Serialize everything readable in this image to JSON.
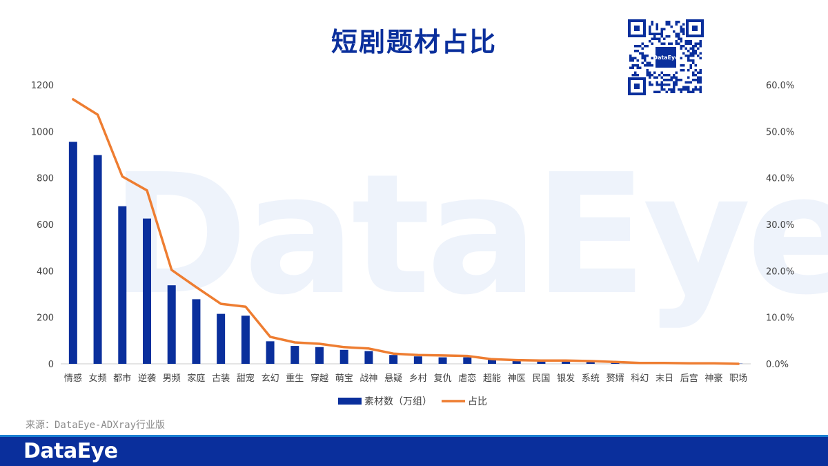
{
  "page": {
    "title": "短剧题材占比",
    "watermark": "DataEye",
    "source": "来源：DataEye-ADXray行业版",
    "footer_brand": "DataEye",
    "qr_label": "DataEye"
  },
  "chart_data": {
    "type": "bar",
    "title": "短剧题材占比",
    "categories": [
      "情感",
      "女频",
      "都市",
      "逆袭",
      "男频",
      "家庭",
      "古装",
      "甜宠",
      "玄幻",
      "重生",
      "穿越",
      "萌宝",
      "战神",
      "悬疑",
      "乡村",
      "复仇",
      "虐恋",
      "超能",
      "神医",
      "民国",
      "银发",
      "系统",
      "赘婿",
      "科幻",
      "末日",
      "后宫",
      "神豪",
      "职场"
    ],
    "series": [
      {
        "name": "素材数（万组）",
        "type": "bar",
        "axis": "left",
        "color": "#0a2f9c",
        "values": [
          955,
          898,
          678,
          625,
          338,
          278,
          215,
          207,
          97,
          77,
          72,
          60,
          55,
          38,
          32,
          28,
          28,
          17,
          13,
          12,
          12,
          10,
          7,
          5,
          4,
          3,
          2,
          1
        ]
      },
      {
        "name": "占比",
        "type": "line",
        "axis": "right",
        "color": "#ee7d31",
        "values": [
          56.9,
          53.6,
          40.3,
          37.3,
          20.2,
          16.5,
          12.9,
          12.3,
          5.8,
          4.6,
          4.3,
          3.6,
          3.3,
          2.2,
          1.9,
          1.8,
          1.7,
          1.0,
          0.8,
          0.7,
          0.7,
          0.6,
          0.4,
          0.2,
          0.2,
          0.1,
          0.1,
          0.0
        ]
      }
    ],
    "y_left": {
      "min": 0,
      "max": 1200,
      "ticks": [
        "0",
        "200",
        "400",
        "600",
        "800",
        "1000",
        "1200"
      ]
    },
    "y_right": {
      "min": 0,
      "max": 60,
      "ticks": [
        "0.0%",
        "10.0%",
        "20.0%",
        "30.0%",
        "40.0%",
        "50.0%",
        "60.0%"
      ]
    },
    "grid": false,
    "legend": {
      "position": "bottom"
    }
  }
}
